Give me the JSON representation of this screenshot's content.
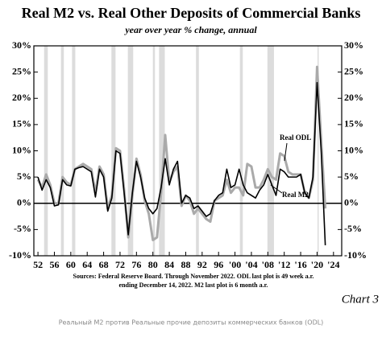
{
  "chart_data": {
    "type": "line",
    "title": "Real M2 vs. Real Other Deposits of Commercial Banks",
    "subtitle": "year over year % change, annual",
    "notes": [
      "Sources: Federal Reserve Board. Through November 2022. ODL last plot is 49 week a.r.",
      "ending December 14, 2022. M2 last plot is 6 month a.r."
    ],
    "chart_label": "Chart 3",
    "caption": "Реальный M2 против Реальные прочие депозиты коммерческих банков (ODL)",
    "x": [
      1952,
      1953,
      1954,
      1955,
      1956,
      1957,
      1958,
      1959,
      1960,
      1961,
      1962,
      1963,
      1964,
      1965,
      1966,
      1967,
      1968,
      1969,
      1970,
      1971,
      1972,
      1973,
      1974,
      1975,
      1976,
      1977,
      1978,
      1979,
      1980,
      1981,
      1982,
      1983,
      1984,
      1985,
      1986,
      1987,
      1988,
      1989,
      1990,
      1991,
      1992,
      1993,
      1994,
      1995,
      1996,
      1997,
      1998,
      1999,
      2000,
      2001,
      2002,
      2003,
      2004,
      2005,
      2006,
      2007,
      2008,
      2009,
      2010,
      2011,
      2012,
      2013,
      2014,
      2015,
      2016,
      2017,
      2018,
      2019,
      2020,
      2021,
      2022
    ],
    "series": [
      {
        "name": "Real ODL",
        "color": "#aaaaaa",
        "values": [
          4.5,
          3,
          5.5,
          3.5,
          0,
          0,
          5,
          4,
          3.5,
          6.5,
          7,
          7.5,
          7,
          6.5,
          2,
          7,
          5.5,
          -1,
          1.5,
          10.5,
          10,
          2.5,
          -6.5,
          1.5,
          8.5,
          5.5,
          0.5,
          -2,
          -7,
          -6.5,
          2,
          13,
          4,
          6,
          7,
          -0.5,
          1.5,
          0.5,
          -2,
          -1,
          -2,
          -3,
          -3.5,
          0.5,
          1,
          1.5,
          4.5,
          2,
          3,
          3,
          1.5,
          7.5,
          7,
          3,
          3,
          4.5,
          6.5,
          5,
          4.5,
          9.5,
          9,
          6,
          5.5,
          5.5,
          5.5,
          2,
          1,
          4.5,
          26,
          12,
          -1
        ]
      },
      {
        "name": "Real M2",
        "color": "#000000",
        "values": [
          5,
          2.5,
          4.5,
          3,
          -0.5,
          -0.3,
          4.5,
          3.5,
          3.3,
          6.5,
          6.8,
          7,
          6.5,
          6,
          1.2,
          6.5,
          5,
          -1.5,
          1,
          10,
          9.5,
          2,
          -6,
          2,
          8,
          5,
          1,
          -1,
          -2,
          -1,
          3,
          8.5,
          3.5,
          6.5,
          8,
          0,
          1.5,
          1,
          -1,
          -0.5,
          -1.5,
          -2.5,
          -2,
          0.5,
          1.5,
          2,
          6.5,
          3,
          3.5,
          6.5,
          3.5,
          2,
          1.5,
          1,
          2.5,
          3.5,
          5.5,
          3.5,
          1.5,
          6.5,
          6,
          5,
          5,
          5,
          5.5,
          2,
          1,
          5,
          23,
          10,
          -8
        ]
      }
    ],
    "recessions": [
      [
        1953.5,
        1954.4
      ],
      [
        1957.6,
        1958.3
      ],
      [
        1960.3,
        1961.1
      ],
      [
        1969.9,
        1970.9
      ],
      [
        1973.9,
        1975.2
      ],
      [
        1980.0,
        1980.5
      ],
      [
        1981.5,
        1982.9
      ],
      [
        1990.5,
        1991.2
      ],
      [
        2001.2,
        2001.9
      ],
      [
        2007.9,
        2009.5
      ],
      [
        2020.1,
        2020.4
      ]
    ],
    "xlim": [
      1951,
      2026
    ],
    "ylim": [
      -10,
      30
    ],
    "xticks": [
      {
        "value": 1952,
        "label": "52"
      },
      {
        "value": 1956,
        "label": "56"
      },
      {
        "value": 1960,
        "label": "60"
      },
      {
        "value": 1964,
        "label": "64"
      },
      {
        "value": 1968,
        "label": "68"
      },
      {
        "value": 1972,
        "label": "72"
      },
      {
        "value": 1976,
        "label": "76"
      },
      {
        "value": 1980,
        "label": "80"
      },
      {
        "value": 1984,
        "label": "84"
      },
      {
        "value": 1988,
        "label": "88"
      },
      {
        "value": 1992,
        "label": "92"
      },
      {
        "value": 1996,
        "label": "96"
      },
      {
        "value": 2000,
        "label": "'00"
      },
      {
        "value": 2004,
        "label": "'04"
      },
      {
        "value": 2008,
        "label": "'08"
      },
      {
        "value": 2012,
        "label": "'12"
      },
      {
        "value": 2016,
        "label": "'16"
      },
      {
        "value": 2020,
        "label": "'20"
      },
      {
        "value": 2024,
        "label": "'24"
      }
    ],
    "yticks": [
      {
        "value": -10,
        "label": "-10%"
      },
      {
        "value": -5,
        "label": "-5%"
      },
      {
        "value": 0,
        "label": "0%"
      },
      {
        "value": 5,
        "label": "5%"
      },
      {
        "value": 10,
        "label": "10%"
      },
      {
        "value": 15,
        "label": "15%"
      },
      {
        "value": 20,
        "label": "20%"
      },
      {
        "value": 25,
        "label": "25%"
      },
      {
        "value": 30,
        "label": "30%"
      }
    ]
  }
}
